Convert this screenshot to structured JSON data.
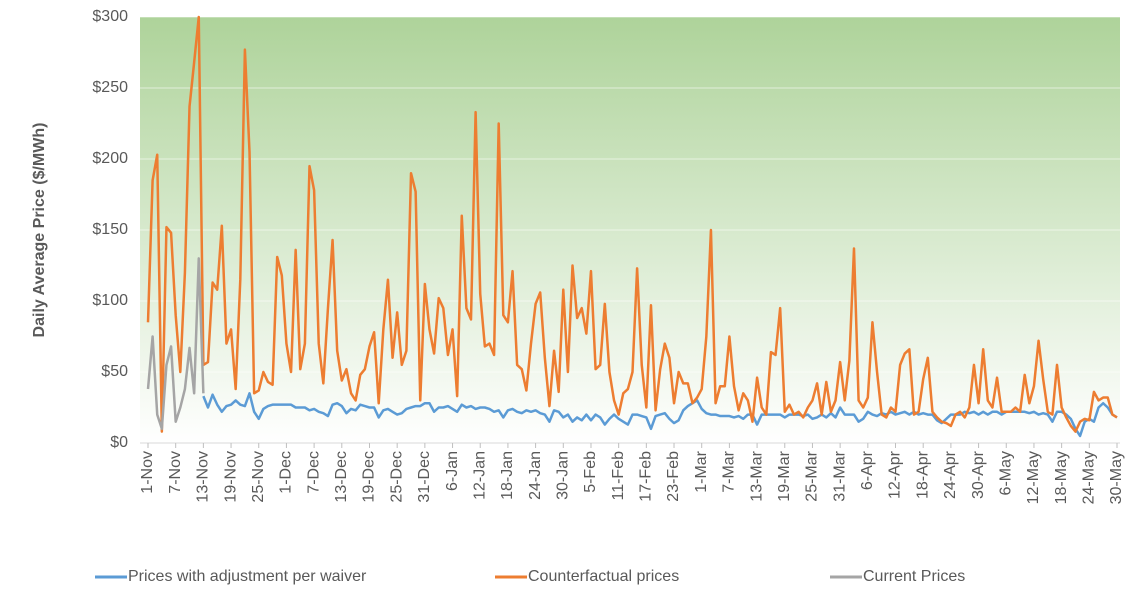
{
  "chart_data": {
    "type": "line",
    "y_label": "Daily Average Price ($/MWh)",
    "categories": [
      "1-Nov",
      null,
      null,
      null,
      null,
      null,
      "7-Nov",
      null,
      null,
      null,
      null,
      null,
      "13-Nov",
      null,
      null,
      null,
      null,
      null,
      "19-Nov",
      null,
      null,
      null,
      null,
      null,
      "25-Nov",
      null,
      null,
      null,
      null,
      null,
      "1-Dec",
      null,
      null,
      null,
      null,
      null,
      "7-Dec",
      null,
      null,
      null,
      null,
      null,
      "13-Dec",
      null,
      null,
      null,
      null,
      null,
      "19-Dec",
      null,
      null,
      null,
      null,
      null,
      "25-Dec",
      null,
      null,
      null,
      null,
      null,
      "31-Dec",
      null,
      null,
      null,
      null,
      null,
      "6-Jan",
      null,
      null,
      null,
      null,
      null,
      "12-Jan",
      null,
      null,
      null,
      null,
      null,
      "18-Jan",
      null,
      null,
      null,
      null,
      null,
      "24-Jan",
      null,
      null,
      null,
      null,
      null,
      "30-Jan",
      null,
      null,
      null,
      null,
      null,
      "5-Feb",
      null,
      null,
      null,
      null,
      null,
      "11-Feb",
      null,
      null,
      null,
      null,
      null,
      "17-Feb",
      null,
      null,
      null,
      null,
      null,
      "23-Feb",
      null,
      null,
      null,
      null,
      null,
      "1-Mar",
      null,
      null,
      null,
      null,
      null,
      "7-Mar",
      null,
      null,
      null,
      null,
      null,
      "13-Mar",
      null,
      null,
      null,
      null,
      null,
      "19-Mar",
      null,
      null,
      null,
      null,
      null,
      "25-Mar",
      null,
      null,
      null,
      null,
      null,
      "31-Mar",
      null,
      null,
      null,
      null,
      null,
      "6-Apr",
      null,
      null,
      null,
      null,
      null,
      "12-Apr",
      null,
      null,
      null,
      null,
      null,
      "18-Apr",
      null,
      null,
      null,
      null,
      null,
      "24-Apr",
      null,
      null,
      null,
      null,
      null,
      "30-Apr",
      null,
      null,
      null,
      null,
      null,
      "6-May",
      null,
      null,
      null,
      null,
      null,
      "12-May",
      null,
      null,
      null,
      null,
      null,
      "18-May",
      null,
      null,
      null,
      null,
      null,
      "24-May",
      null,
      null,
      null,
      null,
      null,
      "30-May"
    ],
    "series": [
      {
        "name": "Prices with adjustment per waiver",
        "color": "#5b9bd5",
        "values": [
          null,
          null,
          null,
          null,
          null,
          null,
          null,
          null,
          null,
          null,
          null,
          null,
          33,
          25,
          34,
          27,
          22,
          26,
          27,
          30,
          27,
          26,
          35,
          22,
          17,
          24,
          26,
          27,
          27,
          27,
          27,
          27,
          25,
          25,
          25,
          23,
          24,
          22,
          21,
          19,
          27,
          28,
          26,
          21,
          24,
          23,
          27,
          26,
          25,
          25,
          18,
          23,
          24,
          22,
          20,
          21,
          24,
          25,
          26,
          26,
          28,
          28,
          22,
          25,
          25,
          26,
          24,
          22,
          27,
          25,
          26,
          24,
          25,
          25,
          24,
          22,
          23,
          18,
          23,
          24,
          22,
          21,
          23,
          22,
          23,
          21,
          20,
          15,
          23,
          22,
          18,
          20,
          15,
          18,
          16,
          20,
          16,
          20,
          18,
          13,
          17,
          20,
          17,
          15,
          13,
          20,
          20,
          19,
          18,
          10,
          19,
          20,
          21,
          17,
          14,
          16,
          23,
          26,
          28,
          30,
          24,
          21,
          20,
          20,
          19,
          19,
          19,
          18,
          19,
          17,
          20,
          20,
          13,
          20,
          20,
          20,
          20,
          20,
          18,
          20,
          20,
          20,
          19,
          20,
          17,
          18,
          20,
          18,
          21,
          18,
          25,
          20,
          20,
          20,
          15,
          17,
          22,
          20,
          19,
          21,
          20,
          22,
          20,
          21,
          22,
          20,
          22,
          20,
          21,
          20,
          20,
          16,
          14,
          17,
          20,
          20,
          20,
          22,
          21,
          22,
          20,
          22,
          20,
          22,
          22,
          20,
          22,
          22,
          22,
          22,
          22,
          21,
          22,
          20,
          21,
          20,
          15,
          22,
          22,
          20,
          17,
          10,
          5,
          15,
          17,
          15,
          25,
          28,
          25,
          20,
          18
        ]
      },
      {
        "name": "Counterfactual prices",
        "color": "#ed7d31",
        "values": [
          85,
          185,
          203,
          8,
          152,
          148,
          90,
          50,
          120,
          237,
          268,
          300,
          55,
          57,
          113,
          108,
          153,
          70,
          80,
          38,
          115,
          277,
          205,
          35,
          37,
          50,
          43,
          41,
          131,
          118,
          70,
          50,
          136,
          52,
          70,
          195,
          178,
          70,
          42,
          95,
          143,
          65,
          44,
          52,
          35,
          30,
          48,
          52,
          68,
          78,
          28,
          80,
          115,
          60,
          92,
          55,
          65,
          190,
          177,
          30,
          112,
          80,
          63,
          102,
          95,
          62,
          80,
          33,
          160,
          95,
          87,
          233,
          105,
          68,
          70,
          62,
          225,
          90,
          85,
          121,
          55,
          52,
          37,
          70,
          98,
          106,
          60,
          26,
          65,
          36,
          108,
          50,
          125,
          88,
          95,
          77,
          121,
          52,
          55,
          98,
          50,
          30,
          20,
          35,
          38,
          50,
          123,
          55,
          25,
          97,
          23,
          52,
          70,
          60,
          28,
          50,
          42,
          42,
          28,
          32,
          38,
          75,
          150,
          28,
          40,
          40,
          75,
          40,
          23,
          35,
          30,
          15,
          46,
          25,
          20,
          64,
          62,
          95,
          22,
          27,
          20,
          22,
          18,
          25,
          30,
          42,
          20,
          43,
          22,
          30,
          57,
          30,
          58,
          137,
          30,
          25,
          32,
          85,
          50,
          20,
          18,
          25,
          22,
          55,
          63,
          66,
          20,
          22,
          45,
          60,
          22,
          18,
          15,
          14,
          12,
          20,
          22,
          18,
          25,
          55,
          28,
          66,
          30,
          25,
          46,
          22,
          22,
          22,
          25,
          22,
          48,
          28,
          40,
          72,
          45,
          22,
          20,
          55,
          25,
          18,
          12,
          8,
          15,
          17,
          16,
          36,
          30,
          32,
          32,
          20,
          18
        ]
      },
      {
        "name": "Current Prices",
        "color": "#a5a5a5",
        "values": [
          38,
          75,
          20,
          10,
          55,
          68,
          15,
          25,
          38,
          67,
          35,
          130,
          35,
          null,
          null,
          null,
          null,
          null,
          null,
          null,
          null,
          null,
          null,
          null,
          null,
          null,
          null,
          null,
          null,
          null,
          null,
          null,
          null,
          null,
          null,
          null,
          null,
          null,
          null,
          null,
          null,
          null,
          null,
          null,
          null,
          null,
          null,
          null,
          null,
          null,
          null,
          null,
          null,
          null,
          null,
          null,
          null,
          null,
          null,
          null,
          null,
          null,
          null,
          null,
          null,
          null,
          null,
          null,
          null,
          null,
          null,
          null,
          null,
          null,
          null,
          null,
          null,
          null,
          null,
          null,
          null,
          null,
          null,
          null,
          null,
          null,
          null,
          null,
          null,
          null,
          null,
          null,
          null,
          null,
          null,
          null,
          null,
          null,
          null,
          null,
          null,
          null,
          null,
          null,
          null,
          null,
          null,
          null,
          null,
          null,
          null,
          null,
          null,
          null,
          null,
          null,
          null,
          null,
          null,
          null,
          null,
          null,
          null,
          null,
          null,
          null,
          null,
          null,
          null,
          null,
          null,
          null,
          null,
          null,
          null,
          null,
          null,
          null,
          null,
          null,
          null,
          null,
          null,
          null,
          null,
          null,
          null,
          null,
          null,
          null,
          null,
          null,
          null,
          null,
          null,
          null,
          null,
          null,
          null,
          null,
          null,
          null,
          null,
          null,
          null,
          null,
          null,
          null,
          null,
          null,
          null,
          null,
          null,
          null,
          null,
          null,
          null,
          null,
          null,
          null,
          null,
          null,
          null,
          null,
          null,
          null,
          null,
          null,
          null,
          null,
          null,
          null,
          null,
          null,
          null,
          null,
          null,
          null,
          null,
          null,
          null,
          null,
          null,
          null,
          null,
          null,
          null,
          null,
          null,
          null,
          null
        ]
      }
    ],
    "ylim": [
      0,
      300
    ],
    "yticks": [
      {
        "value": 0,
        "label": "$0"
      },
      {
        "value": 50,
        "label": "$50"
      },
      {
        "value": 100,
        "label": "$100"
      },
      {
        "value": 150,
        "label": "$150"
      },
      {
        "value": 200,
        "label": "$200"
      },
      {
        "value": 250,
        "label": "$250"
      },
      {
        "value": 300,
        "label": "$300"
      }
    ],
    "grid": true,
    "legend": "bottom"
  }
}
